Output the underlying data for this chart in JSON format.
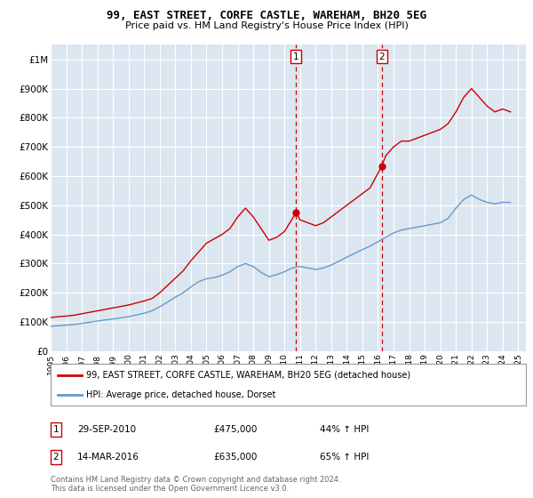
{
  "title": "99, EAST STREET, CORFE CASTLE, WAREHAM, BH20 5EG",
  "subtitle": "Price paid vs. HM Land Registry's House Price Index (HPI)",
  "legend_line1": "99, EAST STREET, CORFE CASTLE, WAREHAM, BH20 5EG (detached house)",
  "legend_line2": "HPI: Average price, detached house, Dorset",
  "footer": "Contains HM Land Registry data © Crown copyright and database right 2024.\nThis data is licensed under the Open Government Licence v3.0.",
  "event1_label": "1",
  "event1_date": "29-SEP-2010",
  "event1_price": "£475,000",
  "event1_pct": "44% ↑ HPI",
  "event2_label": "2",
  "event2_date": "14-MAR-2016",
  "event2_price": "£635,000",
  "event2_pct": "65% ↑ HPI",
  "red_color": "#cc0000",
  "blue_color": "#6699cc",
  "event_line_color": "#cc0000",
  "background_color": "#ffffff",
  "plot_bg_color": "#dce6f0",
  "ylim": [
    0,
    1050000
  ],
  "yticks": [
    0,
    100000,
    200000,
    300000,
    400000,
    500000,
    600000,
    700000,
    800000,
    900000,
    1000000
  ],
  "red_data": {
    "years": [
      1995,
      1995.5,
      1996,
      1996.5,
      1997,
      1997.5,
      1998,
      1998.5,
      1999,
      1999.5,
      2000,
      2000.5,
      2001,
      2001.5,
      2002,
      2002.5,
      2003,
      2003.5,
      2004,
      2004.5,
      2005,
      2005.5,
      2006,
      2006.5,
      2007,
      2007.5,
      2008,
      2008.5,
      2009,
      2009.5,
      2010,
      2010.75,
      2011,
      2011.5,
      2012,
      2012.5,
      2013,
      2013.5,
      2014,
      2014.5,
      2015,
      2015.5,
      2016.25,
      2016.5,
      2017,
      2017.5,
      2018,
      2018.5,
      2019,
      2019.5,
      2020,
      2020.5,
      2021,
      2021.5,
      2022,
      2022.5,
      2023,
      2023.5,
      2024,
      2024.5
    ],
    "values": [
      115000,
      118000,
      120000,
      123000,
      128000,
      133000,
      138000,
      143000,
      148000,
      153000,
      158000,
      165000,
      172000,
      180000,
      200000,
      225000,
      250000,
      275000,
      310000,
      340000,
      370000,
      385000,
      400000,
      420000,
      460000,
      490000,
      460000,
      420000,
      380000,
      390000,
      410000,
      475000,
      450000,
      440000,
      430000,
      440000,
      460000,
      480000,
      500000,
      520000,
      540000,
      560000,
      635000,
      670000,
      700000,
      720000,
      720000,
      730000,
      740000,
      750000,
      760000,
      780000,
      820000,
      870000,
      900000,
      870000,
      840000,
      820000,
      830000,
      820000
    ]
  },
  "blue_data": {
    "years": [
      1995,
      1995.5,
      1996,
      1996.5,
      1997,
      1997.5,
      1998,
      1998.5,
      1999,
      1999.5,
      2000,
      2000.5,
      2001,
      2001.5,
      2002,
      2002.5,
      2003,
      2003.5,
      2004,
      2004.5,
      2005,
      2005.5,
      2006,
      2006.5,
      2007,
      2007.5,
      2008,
      2008.5,
      2009,
      2009.5,
      2010,
      2010.5,
      2011,
      2011.5,
      2012,
      2012.5,
      2013,
      2013.5,
      2014,
      2014.5,
      2015,
      2015.5,
      2016,
      2016.5,
      2017,
      2017.5,
      2018,
      2018.5,
      2019,
      2019.5,
      2020,
      2020.5,
      2021,
      2021.5,
      2022,
      2022.5,
      2023,
      2023.5,
      2024,
      2024.5
    ],
    "values": [
      85000,
      87000,
      89000,
      91000,
      95000,
      99000,
      103000,
      107000,
      110000,
      114000,
      118000,
      124000,
      130000,
      138000,
      152000,
      168000,
      185000,
      200000,
      220000,
      238000,
      248000,
      252000,
      260000,
      272000,
      290000,
      300000,
      290000,
      270000,
      255000,
      262000,
      272000,
      285000,
      290000,
      285000,
      280000,
      285000,
      295000,
      308000,
      322000,
      335000,
      348000,
      360000,
      375000,
      390000,
      405000,
      415000,
      420000,
      425000,
      430000,
      435000,
      440000,
      455000,
      490000,
      520000,
      535000,
      520000,
      510000,
      505000,
      510000,
      510000
    ]
  },
  "event1_x": 2010.75,
  "event1_y": 475000,
  "event2_x": 2016.25,
  "event2_y": 635000,
  "xlim": [
    1995,
    2025.5
  ],
  "xticks": [
    1995,
    1996,
    1997,
    1998,
    1999,
    2000,
    2001,
    2002,
    2003,
    2004,
    2005,
    2006,
    2007,
    2008,
    2009,
    2010,
    2011,
    2012,
    2013,
    2014,
    2015,
    2016,
    2017,
    2018,
    2019,
    2020,
    2021,
    2022,
    2023,
    2024,
    2025
  ]
}
